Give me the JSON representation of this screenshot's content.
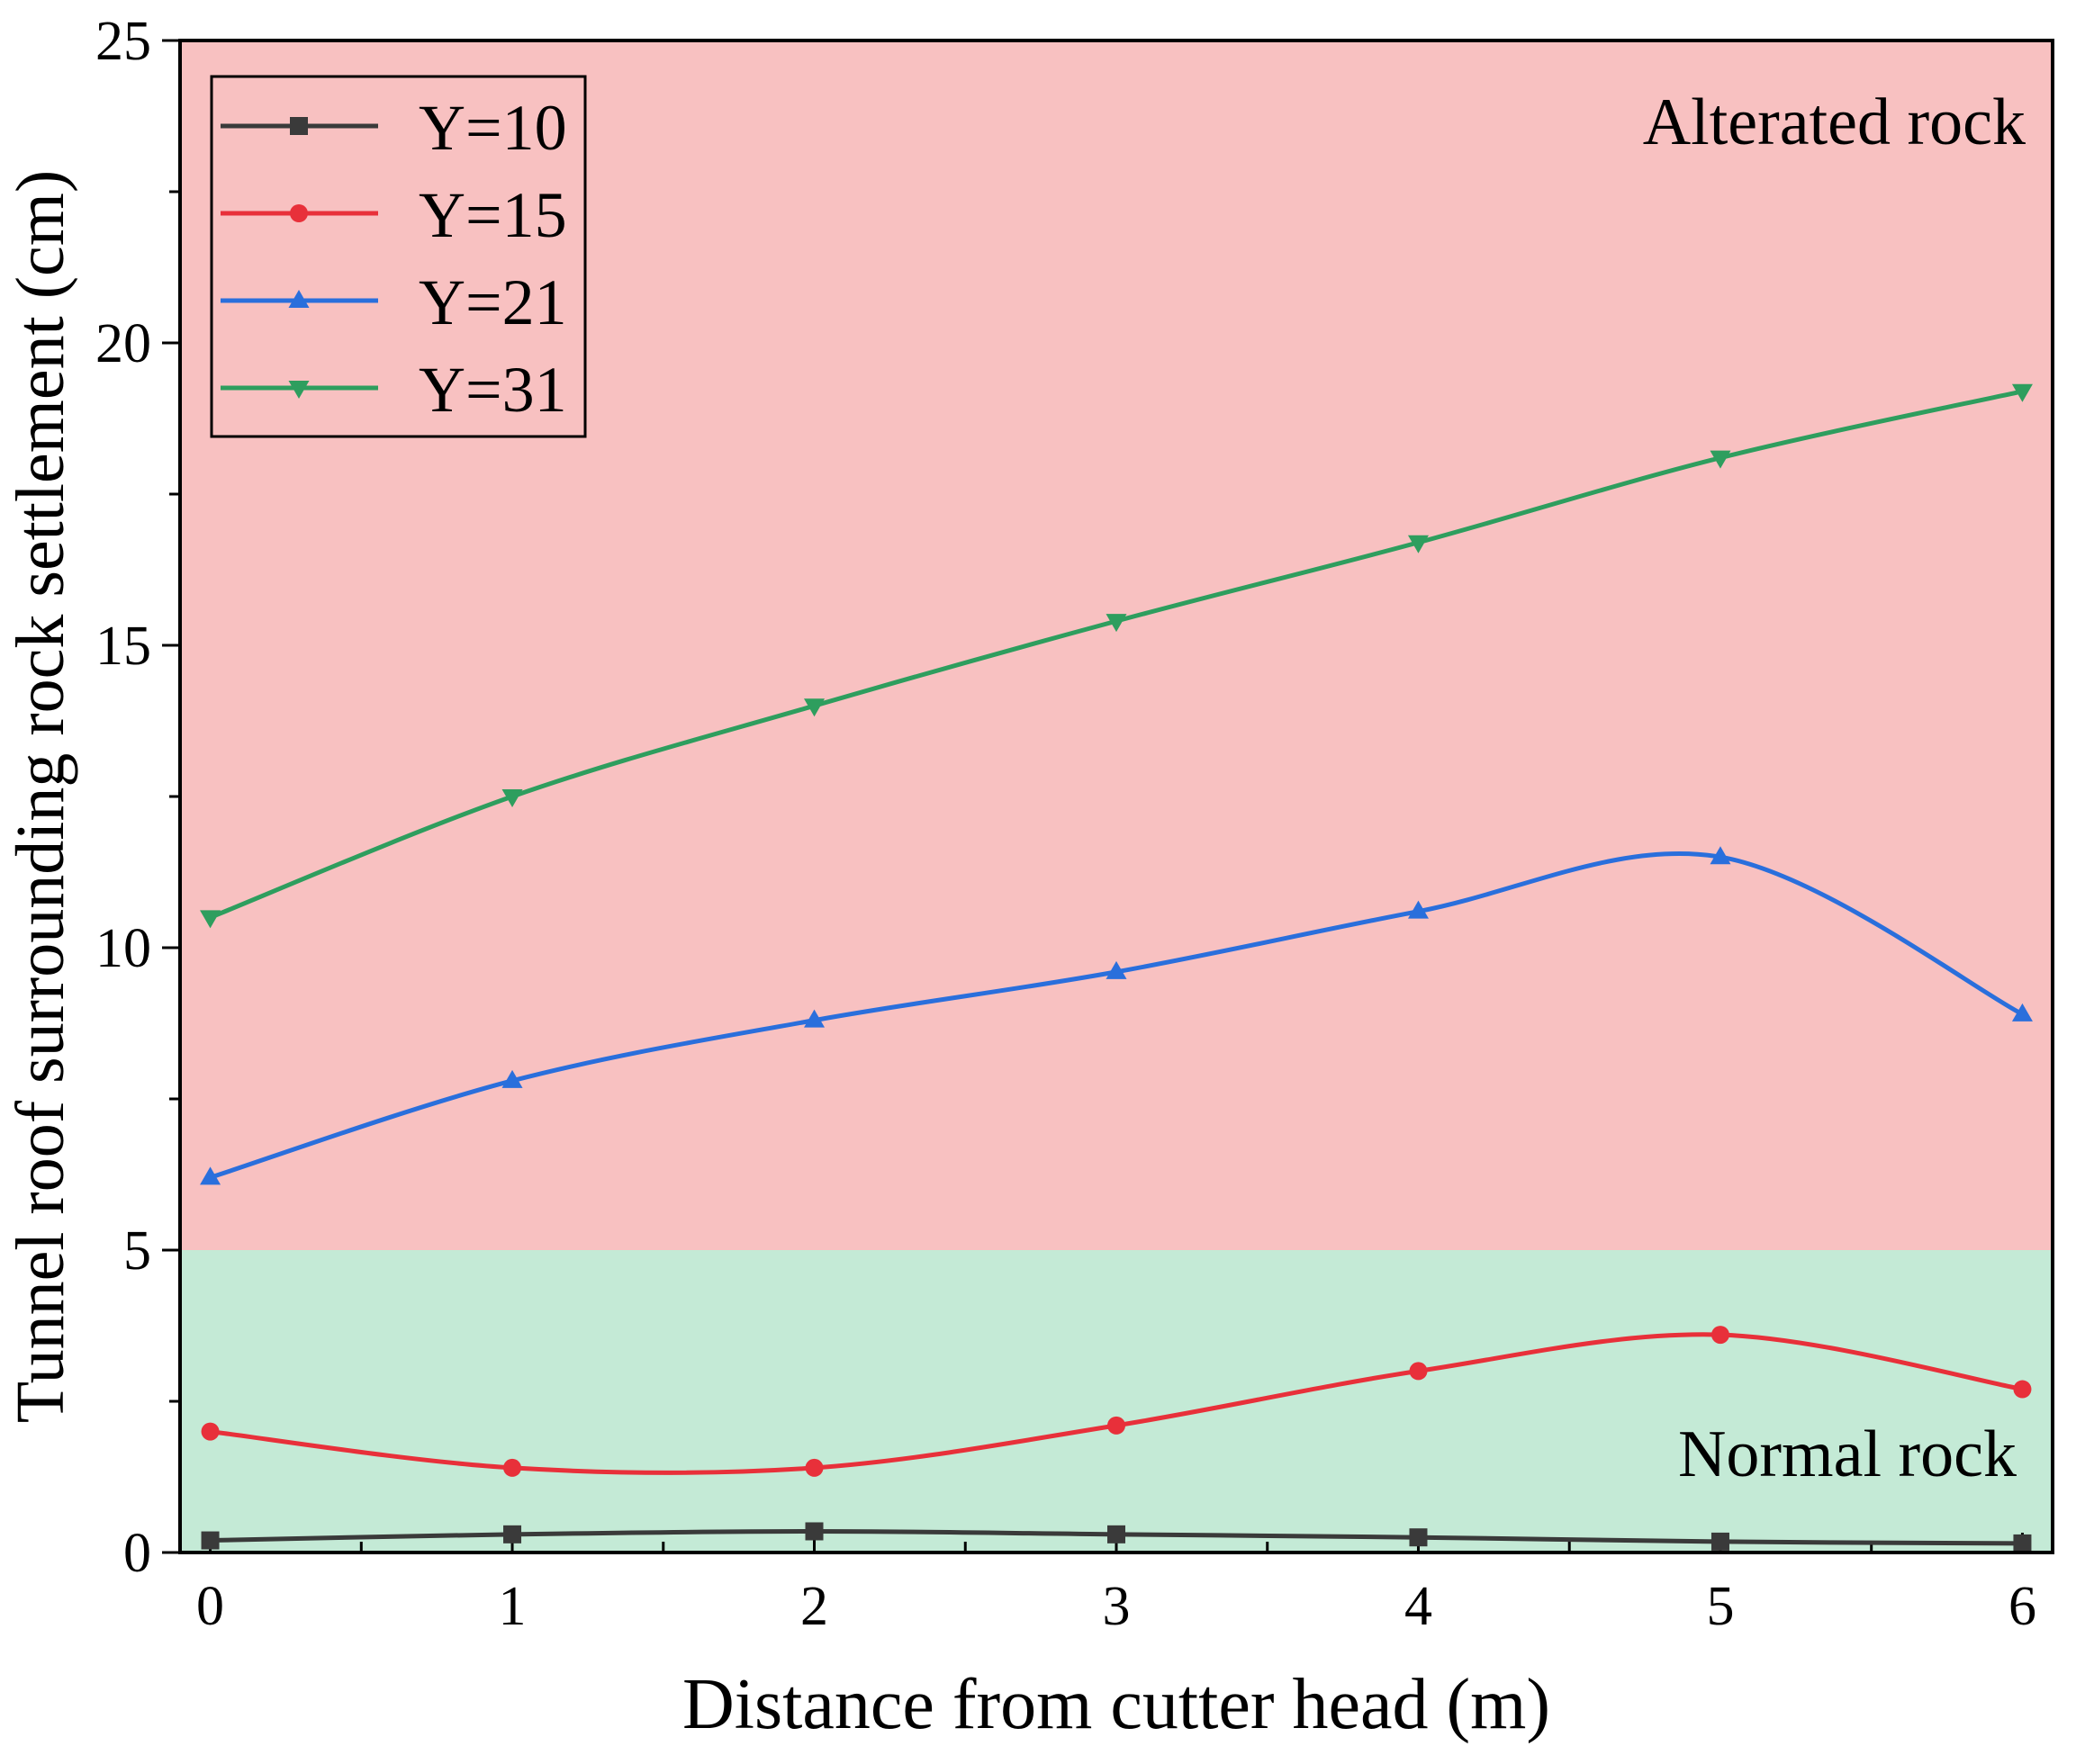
{
  "chart_data": {
    "type": "line",
    "xlabel": "Distance from cutter head (m)",
    "ylabel": "Tunnel roof surrounding rock settlement (cm)",
    "xlim": [
      -0.1,
      6.1
    ],
    "ylim": [
      0,
      25
    ],
    "x_ticks": [
      0,
      1,
      2,
      3,
      4,
      5,
      6
    ],
    "y_ticks": [
      0,
      5,
      10,
      15,
      20,
      25
    ],
    "x_tick_labels": [
      "0",
      "1",
      "2",
      "3",
      "4",
      "5",
      "6"
    ],
    "y_tick_labels": [
      "0",
      "5",
      "10",
      "15",
      "20",
      "25"
    ],
    "x": [
      0,
      1,
      2,
      3,
      4,
      5,
      6
    ],
    "regions": [
      {
        "label": "Alterated rock",
        "y_range": [
          5,
          25
        ],
        "color": "#f8c1c1"
      },
      {
        "label": "Normal rock",
        "y_range": [
          0,
          5
        ],
        "color": "#c4ead6"
      }
    ],
    "series": [
      {
        "name": "Y=10",
        "color": "#3a3a3a",
        "marker": "square",
        "values": [
          0.2,
          0.3,
          0.35,
          0.3,
          0.25,
          0.18,
          0.15
        ]
      },
      {
        "name": "Y=15",
        "color": "#e8303a",
        "marker": "circle",
        "values": [
          2.0,
          1.4,
          1.4,
          2.1,
          3.0,
          3.6,
          2.7
        ]
      },
      {
        "name": "Y=21",
        "color": "#2a6fdc",
        "marker": "triangle-up",
        "values": [
          6.2,
          7.8,
          8.8,
          9.6,
          10.6,
          11.5,
          8.9
        ]
      },
      {
        "name": "Y=31",
        "color": "#2e9e5e",
        "marker": "triangle-down",
        "values": [
          10.5,
          12.5,
          14.0,
          15.4,
          16.7,
          18.1,
          19.2
        ]
      }
    ],
    "legend_position": "top-left"
  }
}
